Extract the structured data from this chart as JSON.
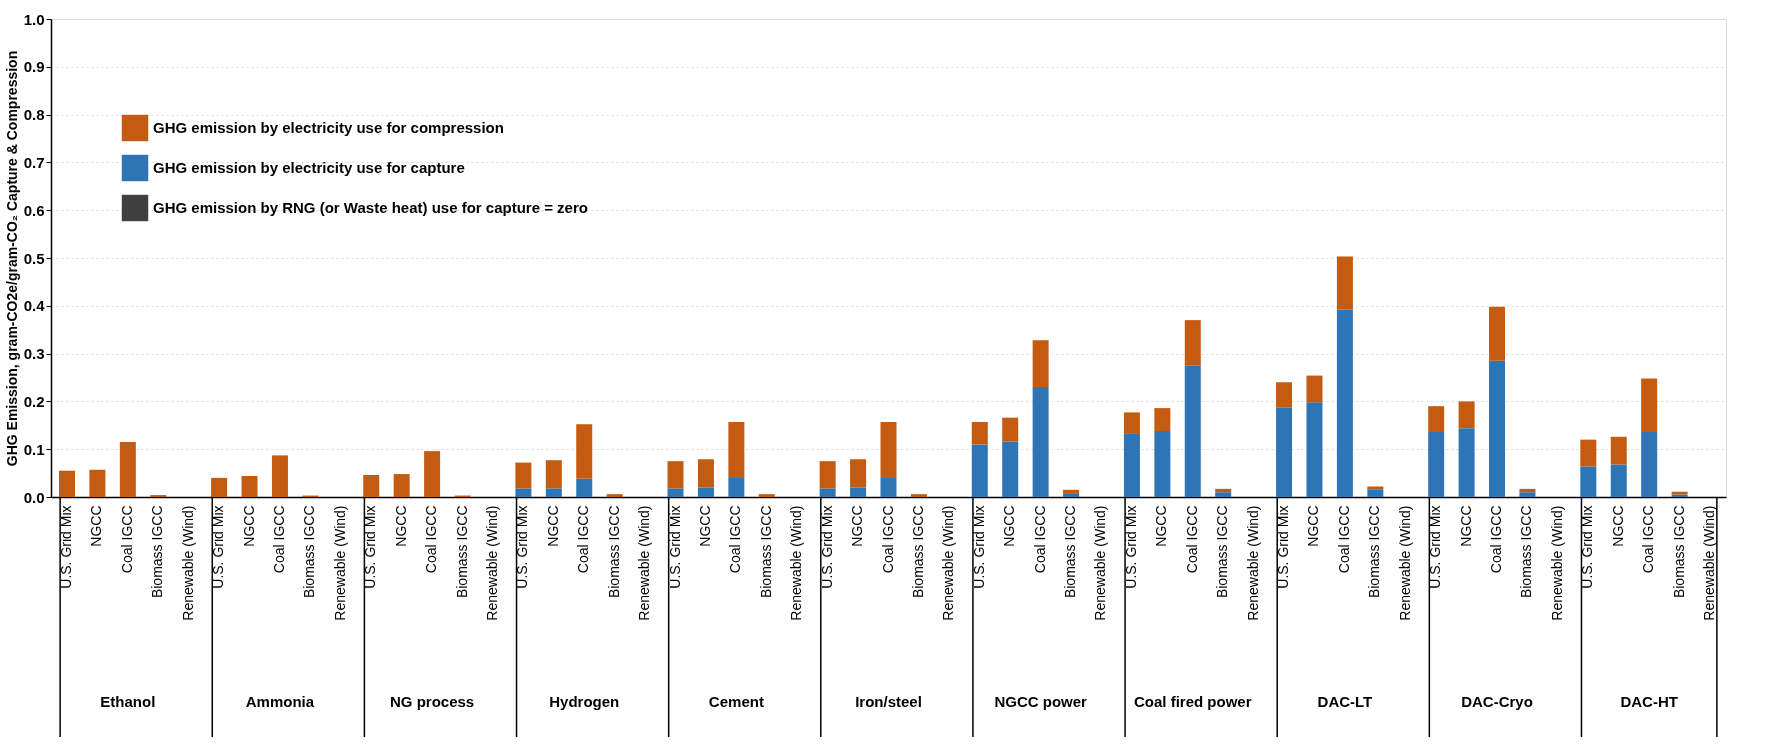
{
  "chart_data": {
    "type": "bar",
    "stacked": true,
    "ylabel": "GHG Emission, gram-CO2e/gram-CO₂ Capture & Compression",
    "categories": [
      "U.S. Grid Mix",
      "NGCC",
      "Coal IGCC",
      "Biomass IGCC",
      "Renewable (Wind)",
      "U.S. Grid Mix",
      "NGCC",
      "Coal IGCC",
      "Biomass IGCC",
      "Renewable (Wind)",
      "U.S. Grid Mix",
      "NGCC",
      "Coal IGCC",
      "Biomass IGCC",
      "Renewable (Wind)",
      "U.S. Grid Mix",
      "NGCC",
      "Coal IGCC",
      "Biomass IGCC",
      "Renewable (Wind)",
      "U.S. Grid Mix",
      "NGCC",
      "Coal IGCC",
      "Biomass IGCC",
      "Renewable (Wind)",
      "U.S. Grid Mix",
      "NGCC",
      "Coal IGCC",
      "Biomass IGCC",
      "Renewable (Wind)",
      "U.S. Grid Mix",
      "NGCC",
      "Coal IGCC",
      "Biomass IGCC",
      "Renewable (Wind)",
      "U.S. Grid Mix",
      "NGCC",
      "Coal IGCC",
      "Biomass IGCC",
      "Renewable (Wind)",
      "U.S. Grid Mix",
      "NGCC",
      "Coal IGCC",
      "Biomass IGCC",
      "Renewable (Wind)",
      "U.S. Grid Mix",
      "NGCC",
      "Coal IGCC",
      "Biomass IGCC",
      "Renewable (Wind)",
      "U.S. Grid Mix",
      "NGCC",
      "Coal IGCC",
      "Biomass IGCC",
      "Renewable (Wind)"
    ],
    "series": [
      {
        "name": "GHG emission by RNG (or Waste heat) use for capture = zero",
        "color": "#404040",
        "values": [
          0,
          0,
          0,
          0,
          0,
          0,
          0,
          0,
          0,
          0,
          0,
          0,
          0,
          0,
          0,
          0,
          0,
          0,
          0,
          0,
          0,
          0,
          0,
          0,
          0,
          0,
          0,
          0,
          0,
          0,
          0,
          0,
          0,
          0,
          0,
          0,
          0,
          0,
          0,
          0,
          0,
          0,
          0,
          0,
          0,
          0,
          0,
          0,
          0,
          0,
          0,
          0,
          0,
          0,
          0
        ]
      },
      {
        "name": "GHG emission by electricity use for capture",
        "color": "#2e75b6",
        "values": [
          0,
          0,
          0,
          0,
          0,
          0,
          0,
          0,
          0,
          0,
          0,
          0,
          0,
          0,
          0,
          0.018,
          0.018,
          0.038,
          null,
          0,
          0.018,
          0.02,
          0.04,
          null,
          0,
          0.018,
          0.02,
          0.04,
          null,
          0,
          0.11,
          0.116,
          0.23,
          0.008,
          0,
          0.132,
          0.138,
          0.275,
          0.01,
          0,
          0.187,
          0.198,
          0.392,
          0.015,
          0,
          0.136,
          0.144,
          0.285,
          0.01,
          0,
          0.064,
          0.068,
          0.136,
          0.005,
          0
        ]
      },
      {
        "name": "GHG emission by electricity use for compression",
        "color": "#c55a11",
        "values": [
          0.055,
          0.057,
          0.115,
          0.004,
          0,
          0.04,
          0.044,
          0.087,
          0.003,
          0,
          0.046,
          0.048,
          0.096,
          0.003,
          0,
          0.054,
          0.059,
          0.114,
          0.006,
          0,
          0.057,
          0.059,
          0.117,
          0.006,
          0,
          0.057,
          0.059,
          0.117,
          0.006,
          0,
          0.047,
          0.05,
          0.098,
          0.007,
          0,
          0.045,
          0.048,
          0.095,
          0.007,
          0,
          0.053,
          0.056,
          0.111,
          0.007,
          0,
          0.054,
          0.056,
          0.113,
          0.007,
          0,
          0.056,
          0.058,
          0.112,
          0.006,
          0
        ]
      }
    ],
    "ylim": [
      0,
      1
    ],
    "yticks": [
      {
        "value": 0,
        "label": "0.0"
      },
      {
        "value": 0.1,
        "label": "0.1"
      },
      {
        "value": 0.2,
        "label": "0.2"
      },
      {
        "value": 0.3,
        "label": "0.3"
      },
      {
        "value": 0.4,
        "label": "0.4"
      },
      {
        "value": 0.5,
        "label": "0.5"
      },
      {
        "value": 0.6,
        "label": "0.6"
      },
      {
        "value": 0.7,
        "label": "0.7"
      },
      {
        "value": 0.8,
        "label": "0.8"
      },
      {
        "value": 0.9,
        "label": "0.9"
      },
      {
        "value": 1,
        "label": "1.0"
      }
    ],
    "grid": "y",
    "legend": "top left",
    "annotations": [
      "Ethanol",
      "Ammonia",
      "NG process",
      "Hydrogen",
      "Cement",
      "Iron/steel",
      "NGCC power",
      "Coal fired power",
      "DAC-LT",
      "DAC-Cryo",
      "DAC-HT"
    ]
  }
}
